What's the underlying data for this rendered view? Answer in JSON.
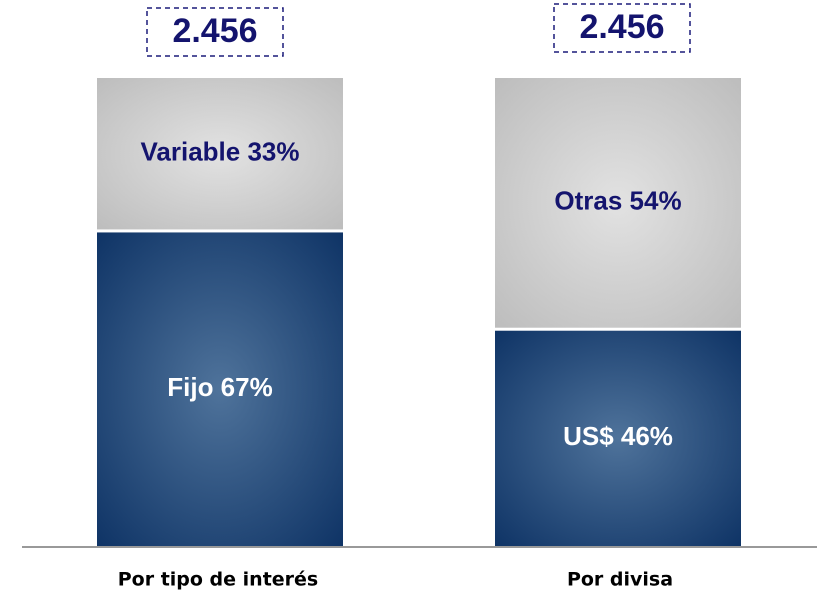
{
  "chart_data": {
    "type": "stacked-bar",
    "categories": [
      "Por tipo de interés",
      "Por divisa"
    ],
    "stacks": [
      {
        "values": [
          67,
          33
        ],
        "value_labels": [
          "Fijo 67%",
          "Variable 33%"
        ]
      },
      {
        "values": [
          46,
          54
        ],
        "value_labels": [
          "US$ 46%",
          "Otras 54%"
        ]
      }
    ],
    "colors": [
      "#0f3466",
      "#bdbdbd"
    ],
    "totals": [
      2456,
      2456
    ],
    "total_labels": [
      "2.456",
      "2.456"
    ],
    "ylim": [
      0,
      100
    ]
  }
}
